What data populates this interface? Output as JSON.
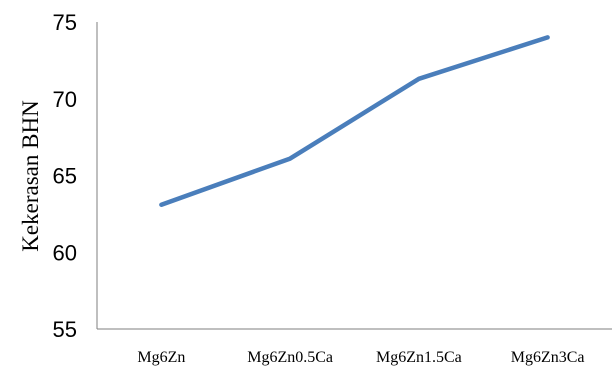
{
  "chart_data": {
    "type": "line",
    "categories": [
      "Mg6Zn",
      "Mg6Zn0.5Ca",
      "Mg6Zn1.5Ca",
      "Mg6Zn3Ca"
    ],
    "series": [
      {
        "values": [
          63.1,
          66.1,
          71.3,
          74.0
        ],
        "color": "#4a7ebb"
      }
    ],
    "title": "",
    "xlabel": "",
    "ylabel": "Kekerasan BHN",
    "ylim": [
      55,
      75
    ],
    "yticks": [
      55,
      60,
      65,
      70,
      75
    ],
    "grid": false,
    "legend": "none"
  }
}
